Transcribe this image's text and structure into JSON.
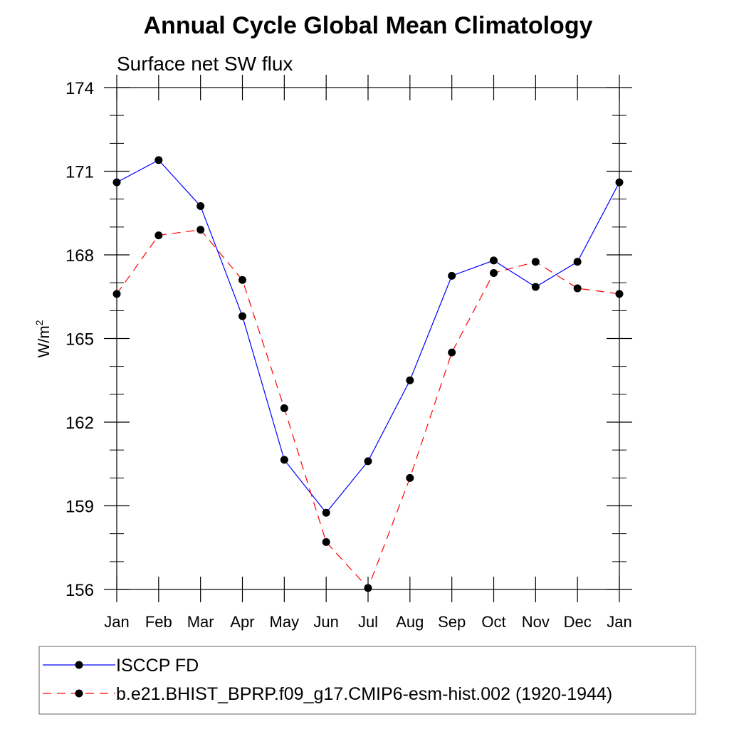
{
  "chart_data": {
    "type": "line",
    "title": "Annual Cycle Global Mean Climatology",
    "subtitle": "Surface net SW flux",
    "ylabel_base": "W/m",
    "ylabel_sup": "2",
    "ylim": [
      156,
      174
    ],
    "yticks": [
      156,
      159,
      162,
      165,
      168,
      171,
      174
    ],
    "ytick_labels": [
      "156",
      "159",
      "162",
      "165",
      "168",
      "171",
      "174"
    ],
    "categories": [
      "Jan",
      "Feb",
      "Mar",
      "Apr",
      "May",
      "Jun",
      "Jul",
      "Aug",
      "Sep",
      "Oct",
      "Nov",
      "Dec",
      "Jan"
    ],
    "grid": false,
    "legend_position": "bottom",
    "series": [
      {
        "name": "ISCCP FD",
        "color": "#0000ff",
        "line_style": "solid",
        "marker": "filled-circle",
        "values": [
          170.6,
          171.4,
          169.75,
          165.8,
          160.65,
          158.75,
          160.6,
          163.5,
          167.25,
          167.8,
          166.85,
          167.75,
          170.6
        ]
      },
      {
        "name": "b.e21.BHIST_BPRP.f09_g17.CMIP6-esm-hist.002 (1920-1944)",
        "color": "#ff0000",
        "line_style": "dashed",
        "marker": "filled-circle",
        "values": [
          166.6,
          168.7,
          168.9,
          167.1,
          162.5,
          157.7,
          156.05,
          160.0,
          164.5,
          167.35,
          167.75,
          166.8,
          166.6
        ]
      }
    ]
  }
}
